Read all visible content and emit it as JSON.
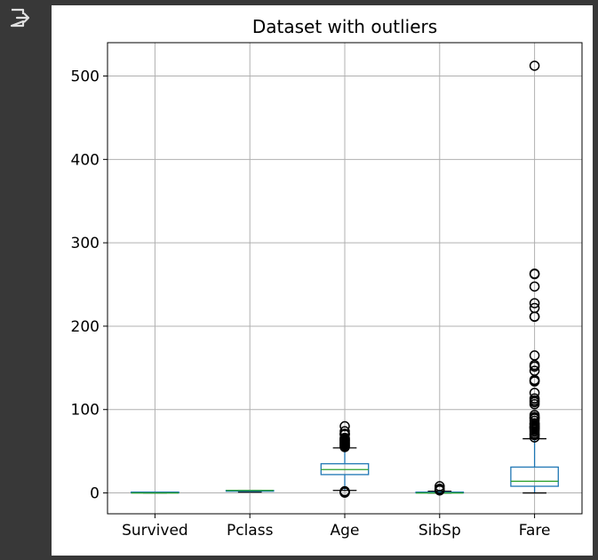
{
  "toolbar": {
    "output_icon": "exit-to-app-icon"
  },
  "colors": {
    "background": "#383838",
    "plot_background": "#ffffff",
    "box": "#1f77b4",
    "median": "#2ca02c",
    "whisker_cap": "#000000",
    "grid": "#b0b0b0",
    "flier": "#000000"
  },
  "chart_data": {
    "type": "boxplot",
    "title": "Dataset with outliers",
    "xlabel": "",
    "ylabel": "",
    "ylim": [
      -25,
      540
    ],
    "yticks": [
      0,
      100,
      200,
      300,
      400,
      500
    ],
    "grid": true,
    "categories": [
      "Survived",
      "Pclass",
      "Age",
      "SibSp",
      "Fare"
    ],
    "boxes": [
      {
        "name": "Survived",
        "whislo": 0,
        "q1": 0,
        "med": 0,
        "q3": 1,
        "whishi": 1,
        "fliers": []
      },
      {
        "name": "Pclass",
        "whislo": 1,
        "q1": 2,
        "med": 3,
        "q3": 3,
        "whishi": 3,
        "fliers": []
      },
      {
        "name": "Age",
        "whislo": 3,
        "q1": 22,
        "med": 28,
        "q3": 35,
        "whishi": 54,
        "fliers": [
          0.42,
          0.67,
          0.75,
          0.83,
          0.92,
          1,
          2,
          55,
          56,
          57,
          58,
          59,
          60,
          61,
          62,
          63,
          64,
          65,
          66,
          70,
          70.5,
          71,
          74,
          80
        ]
      },
      {
        "name": "SibSp",
        "whislo": 0,
        "q1": 0,
        "med": 0,
        "q3": 1,
        "whishi": 2,
        "fliers": [
          3,
          4,
          5,
          8
        ]
      },
      {
        "name": "Fare",
        "whislo": 0,
        "q1": 8,
        "med": 14,
        "q3": 31,
        "whishi": 65,
        "fliers": [
          66.6,
          69.3,
          69.55,
          71.3,
          73.5,
          75.25,
          76.7,
          77.3,
          77.96,
          78.27,
          78.85,
          79.2,
          79.65,
          80,
          81.86,
          82.17,
          83.16,
          83.47,
          86.5,
          89.1,
          90,
          91.08,
          93.5,
          106.43,
          108.9,
          110.88,
          113.28,
          120,
          133.65,
          134.5,
          135.63,
          146.52,
          151.55,
          153.46,
          164.87,
          211.34,
          211.5,
          221.78,
          227.53,
          247.52,
          262.38,
          263,
          512.33
        ]
      }
    ]
  }
}
